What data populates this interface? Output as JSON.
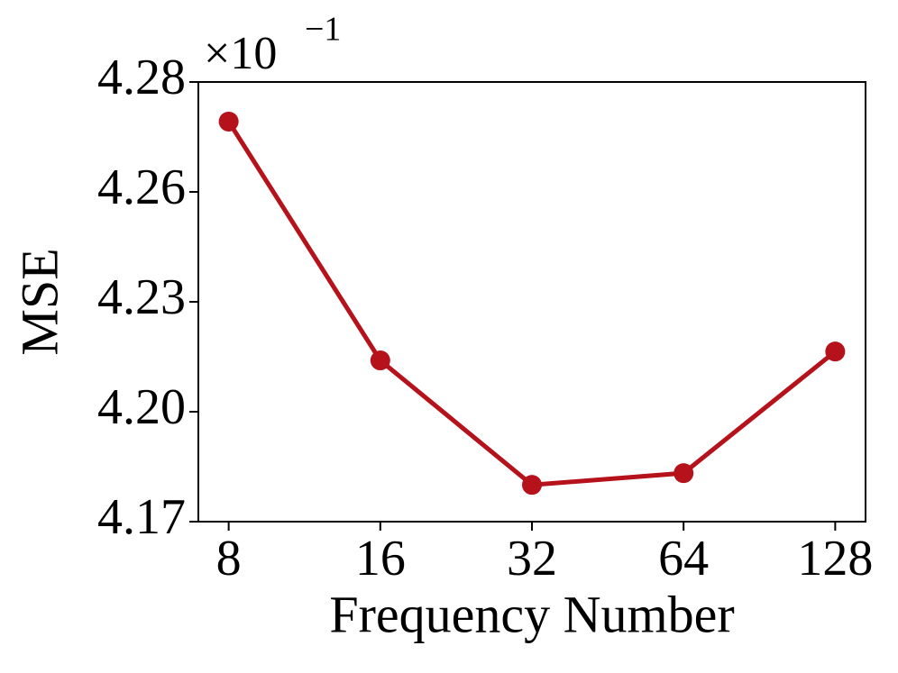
{
  "chart_data": {
    "type": "line",
    "x_label": "Frequency Number",
    "y_label": "MSE",
    "y_offset_label": {
      "base": "×10",
      "exponent": "−1"
    },
    "categories": [
      "8",
      "16",
      "32",
      "64",
      "128"
    ],
    "series": [
      {
        "name": "MSE",
        "color": "#b5121b",
        "values": [
          4.2735,
          4.2144,
          4.1836,
          4.1865,
          4.2166
        ]
      }
    ],
    "ylim": [
      4.1745,
      4.2833
    ],
    "yticks": [
      {
        "value": 4.1745,
        "label": "4.17"
      },
      {
        "value": 4.2017,
        "label": "4.20"
      },
      {
        "value": 4.2289,
        "label": "4.23"
      },
      {
        "value": 4.2561,
        "label": "4.26"
      },
      {
        "value": 4.2833,
        "label": "4.28"
      }
    ],
    "grid": false
  }
}
